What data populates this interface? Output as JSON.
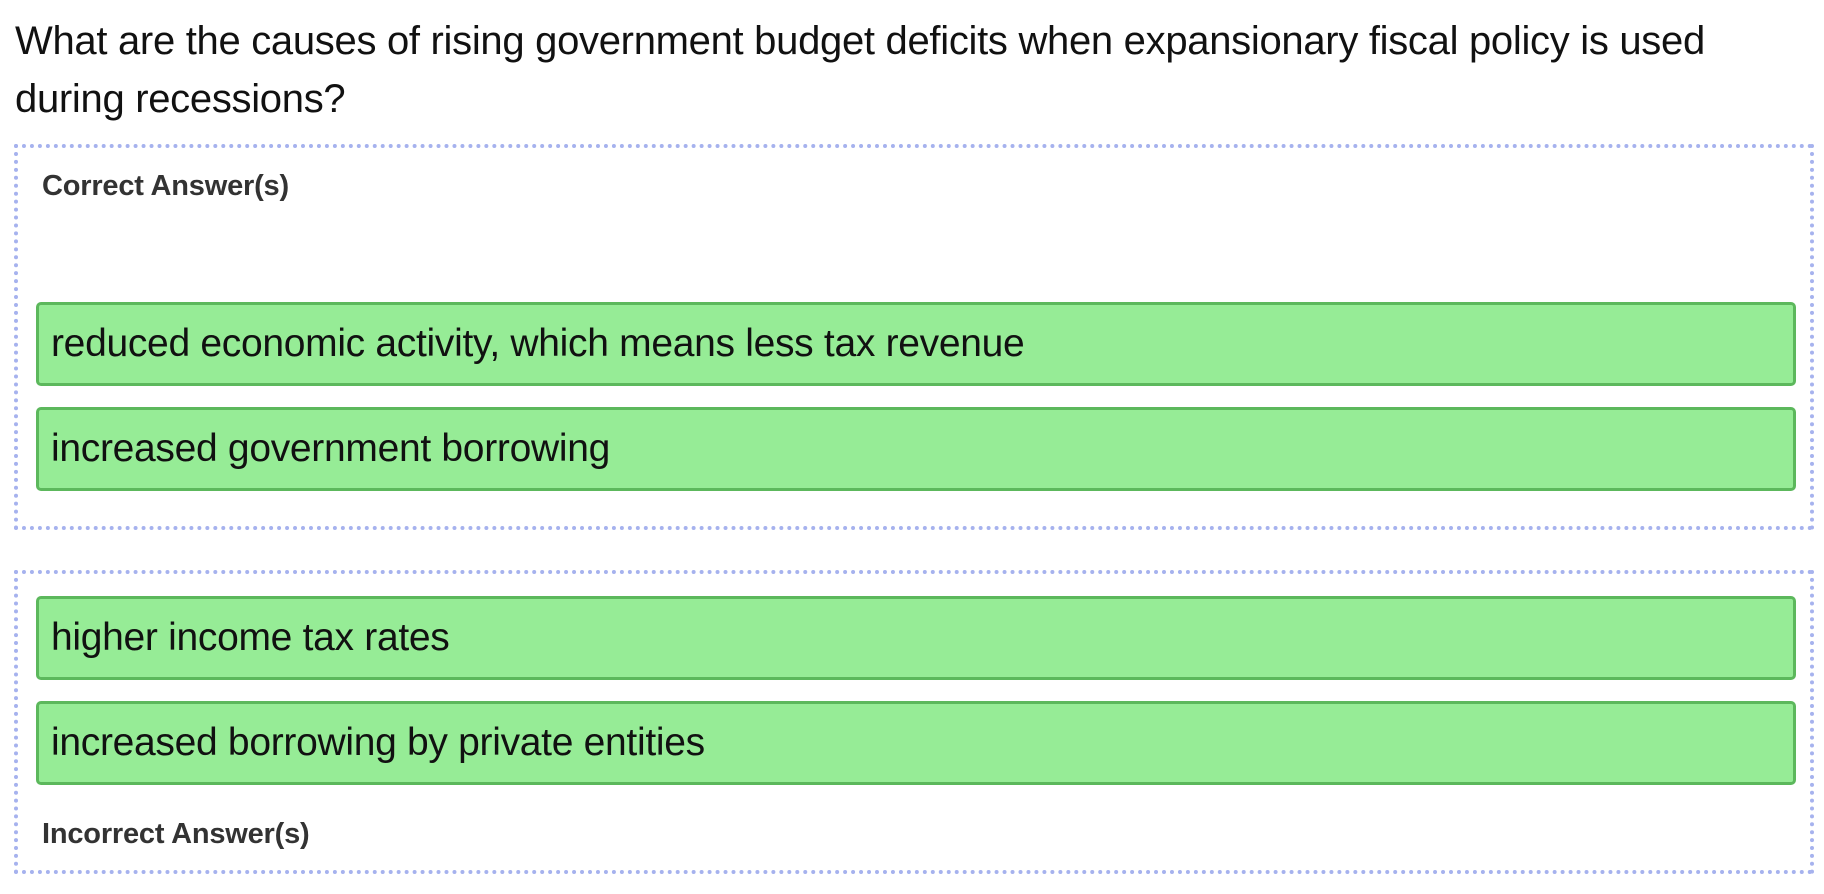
{
  "question": "What are the causes of rising government budget deficits when expansionary fiscal policy is used during recessions?",
  "correct_zone": {
    "label": "Correct Answer(s)",
    "answers": [
      "reduced economic activity, which means less tax revenue",
      "increased government borrowing"
    ]
  },
  "incorrect_zone": {
    "label": "Incorrect Answer(s)",
    "answers": [
      "higher income tax rates",
      "increased borrowing by private entities"
    ]
  },
  "colors": {
    "answer_fill": "#96ec96",
    "answer_border": "#5cb85c",
    "zone_border": "#a6b2ee",
    "label_text": "#333333"
  }
}
